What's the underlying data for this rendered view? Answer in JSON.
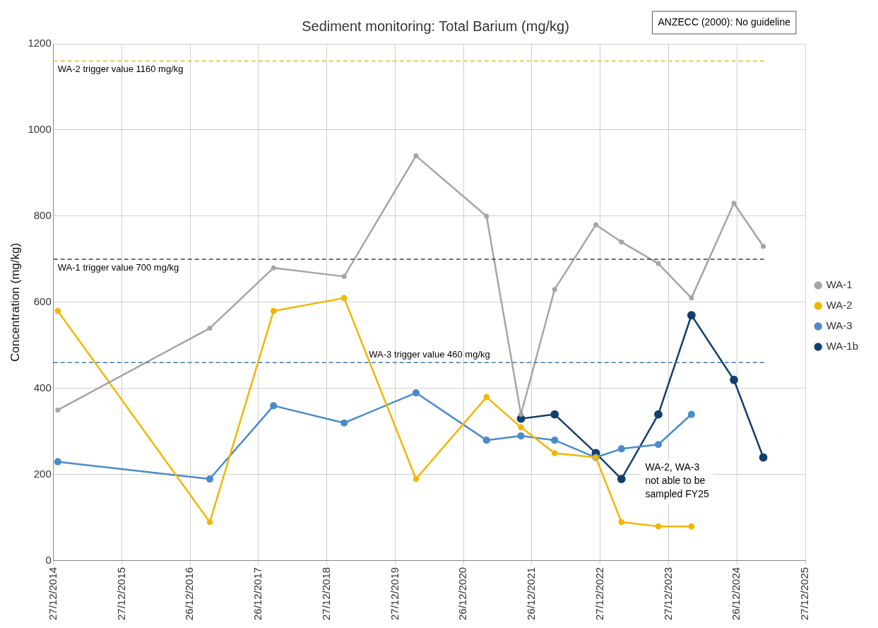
{
  "chart_data": {
    "type": "line",
    "title": "Sediment monitoring: Total Barium (mg/kg)",
    "ylabel": "Concentration (mg/kg)",
    "x": [
      "2015-01-19",
      "2017-04-10",
      "2018-03-17",
      "2019-03-29",
      "2020-04-16",
      "2021-04-28",
      "2021-10-29",
      "2022-04-27",
      "2022-12-03",
      "2023-04-19",
      "2023-11-02",
      "2024-04-27",
      "2024-12-10",
      "2025-05-16"
    ],
    "series": [
      {
        "name": "WA-1",
        "color": "#a5a5a5",
        "values": [
          350,
          540,
          680,
          660,
          940,
          800,
          340,
          630,
          780,
          740,
          690,
          610,
          830,
          730
        ]
      },
      {
        "name": "WA-2",
        "color": "#f2b600",
        "values": [
          580,
          90,
          580,
          610,
          190,
          380,
          310,
          250,
          240,
          90,
          80,
          80,
          null,
          null
        ]
      },
      {
        "name": "WA-3",
        "color": "#4a8bcb",
        "values": [
          230,
          190,
          360,
          320,
          390,
          280,
          290,
          280,
          240,
          260,
          270,
          340,
          null,
          null
        ]
      },
      {
        "name": "WA-1b",
        "color": "#113f6f",
        "values": [
          null,
          null,
          null,
          null,
          null,
          null,
          330,
          340,
          250,
          190,
          340,
          570,
          420,
          240
        ]
      }
    ],
    "xlim": [
      "2014-12-27",
      "2025-12-27"
    ],
    "xticks": [
      {
        "value": "2014-12-27",
        "label": "27/12/2014"
      },
      {
        "value": "2015-12-27",
        "label": "27/12/2015"
      },
      {
        "value": "2016-12-26",
        "label": "26/12/2016"
      },
      {
        "value": "2017-12-26",
        "label": "26/12/2017"
      },
      {
        "value": "2018-12-27",
        "label": "27/12/2018"
      },
      {
        "value": "2019-12-27",
        "label": "27/12/2019"
      },
      {
        "value": "2020-12-26",
        "label": "26/12/2020"
      },
      {
        "value": "2021-12-26",
        "label": "26/12/2021"
      },
      {
        "value": "2022-12-27",
        "label": "27/12/2022"
      },
      {
        "value": "2023-12-27",
        "label": "27/12/2023"
      },
      {
        "value": "2024-12-26",
        "label": "26/12/2024"
      },
      {
        "value": "2025-12-27",
        "label": "27/12/2025"
      }
    ],
    "ylim": [
      0,
      1200
    ],
    "yticks": [
      0,
      200,
      400,
      600,
      800,
      1000,
      1200
    ],
    "ref_lines": [
      {
        "axis": "y",
        "value": 1160,
        "label": "WA-2 trigger value 1160 mg/kg",
        "color": "#f2b600",
        "line_style": "dashed"
      },
      {
        "axis": "y",
        "value": 700,
        "label": "WA-1 trigger value 700 mg/kg",
        "color": "#404040",
        "line_style": "dashed"
      },
      {
        "axis": "y",
        "value": 460,
        "label": "WA-3 trigger value 460 mg/kg",
        "color": "#3f76b0",
        "line_style": "dashed"
      }
    ],
    "annotations": [
      "ANZECC (2000): No guideline",
      "WA-2, WA-3\nnot able to be\nsampled FY25"
    ],
    "grid": true,
    "legend": "right",
    "marker": "circle",
    "line_style": "solid"
  }
}
